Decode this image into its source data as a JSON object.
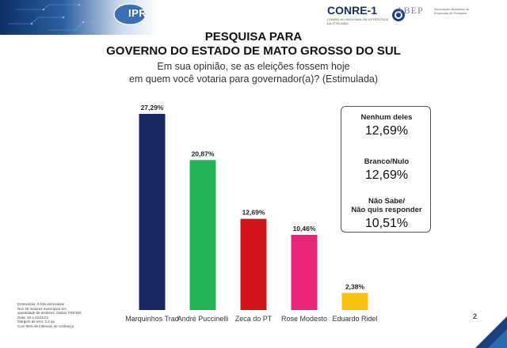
{
  "header": {
    "ipr_logo": "IPR",
    "conre_title": "CONRE-1",
    "conre_subtitle": "CONSELHO REGIONAL DE ESTATÍSTICA DA 1ª REGIÃO",
    "abep_title": "ABEP",
    "abep_subtitle": "Associação Brasileira de Empresas de Pesquisa"
  },
  "title_line1": "PESQUISA PARA",
  "title_line2": "GOVERNO DO ESTADO DE MATO GROSSO DO SUL",
  "subtitle_line1": "Em sua opinião, se as eleições fossem hoje",
  "subtitle_line2": "em quem você votaria para governador(a)? (Estimulada)",
  "chart_data": {
    "type": "bar",
    "categories": [
      "Marquinhos Trad",
      "André Puccinelli",
      "Zeca do PT",
      "Rose Modesto",
      "Eduardo Ridel"
    ],
    "values": [
      27.29,
      20.87,
      12.69,
      10.46,
      2.38
    ],
    "value_labels": [
      "27,29%",
      "20,87%",
      "12,69%",
      "10,46%",
      "2,38%"
    ],
    "colors": [
      "#15275e",
      "#24b457",
      "#d3151a",
      "#e8237a",
      "#f6c40f"
    ],
    "ylim": [
      0,
      27.29
    ],
    "grid": false,
    "legend": "none"
  },
  "summary_box": [
    {
      "label_lines": [
        "Nenhum deles"
      ],
      "value": "12,69%"
    },
    {
      "label_lines": [
        "Branco/Nulo"
      ],
      "value": "12,69%"
    },
    {
      "label_lines": [
        "Não Sabe/",
        "Não quis responder"
      ],
      "value": "10,51%"
    }
  ],
  "footnote": [
    "Entrevistas: 2.016 entrevistas",
    "Nos 26 maiores municípios em",
    "quantidade de eleitores. Dados TRE/MS",
    "Data: 18 a 22/11/21",
    "Margem de erro: 2,2 pp",
    "Com 95% de intervalo de confiança"
  ],
  "page_number": "2"
}
